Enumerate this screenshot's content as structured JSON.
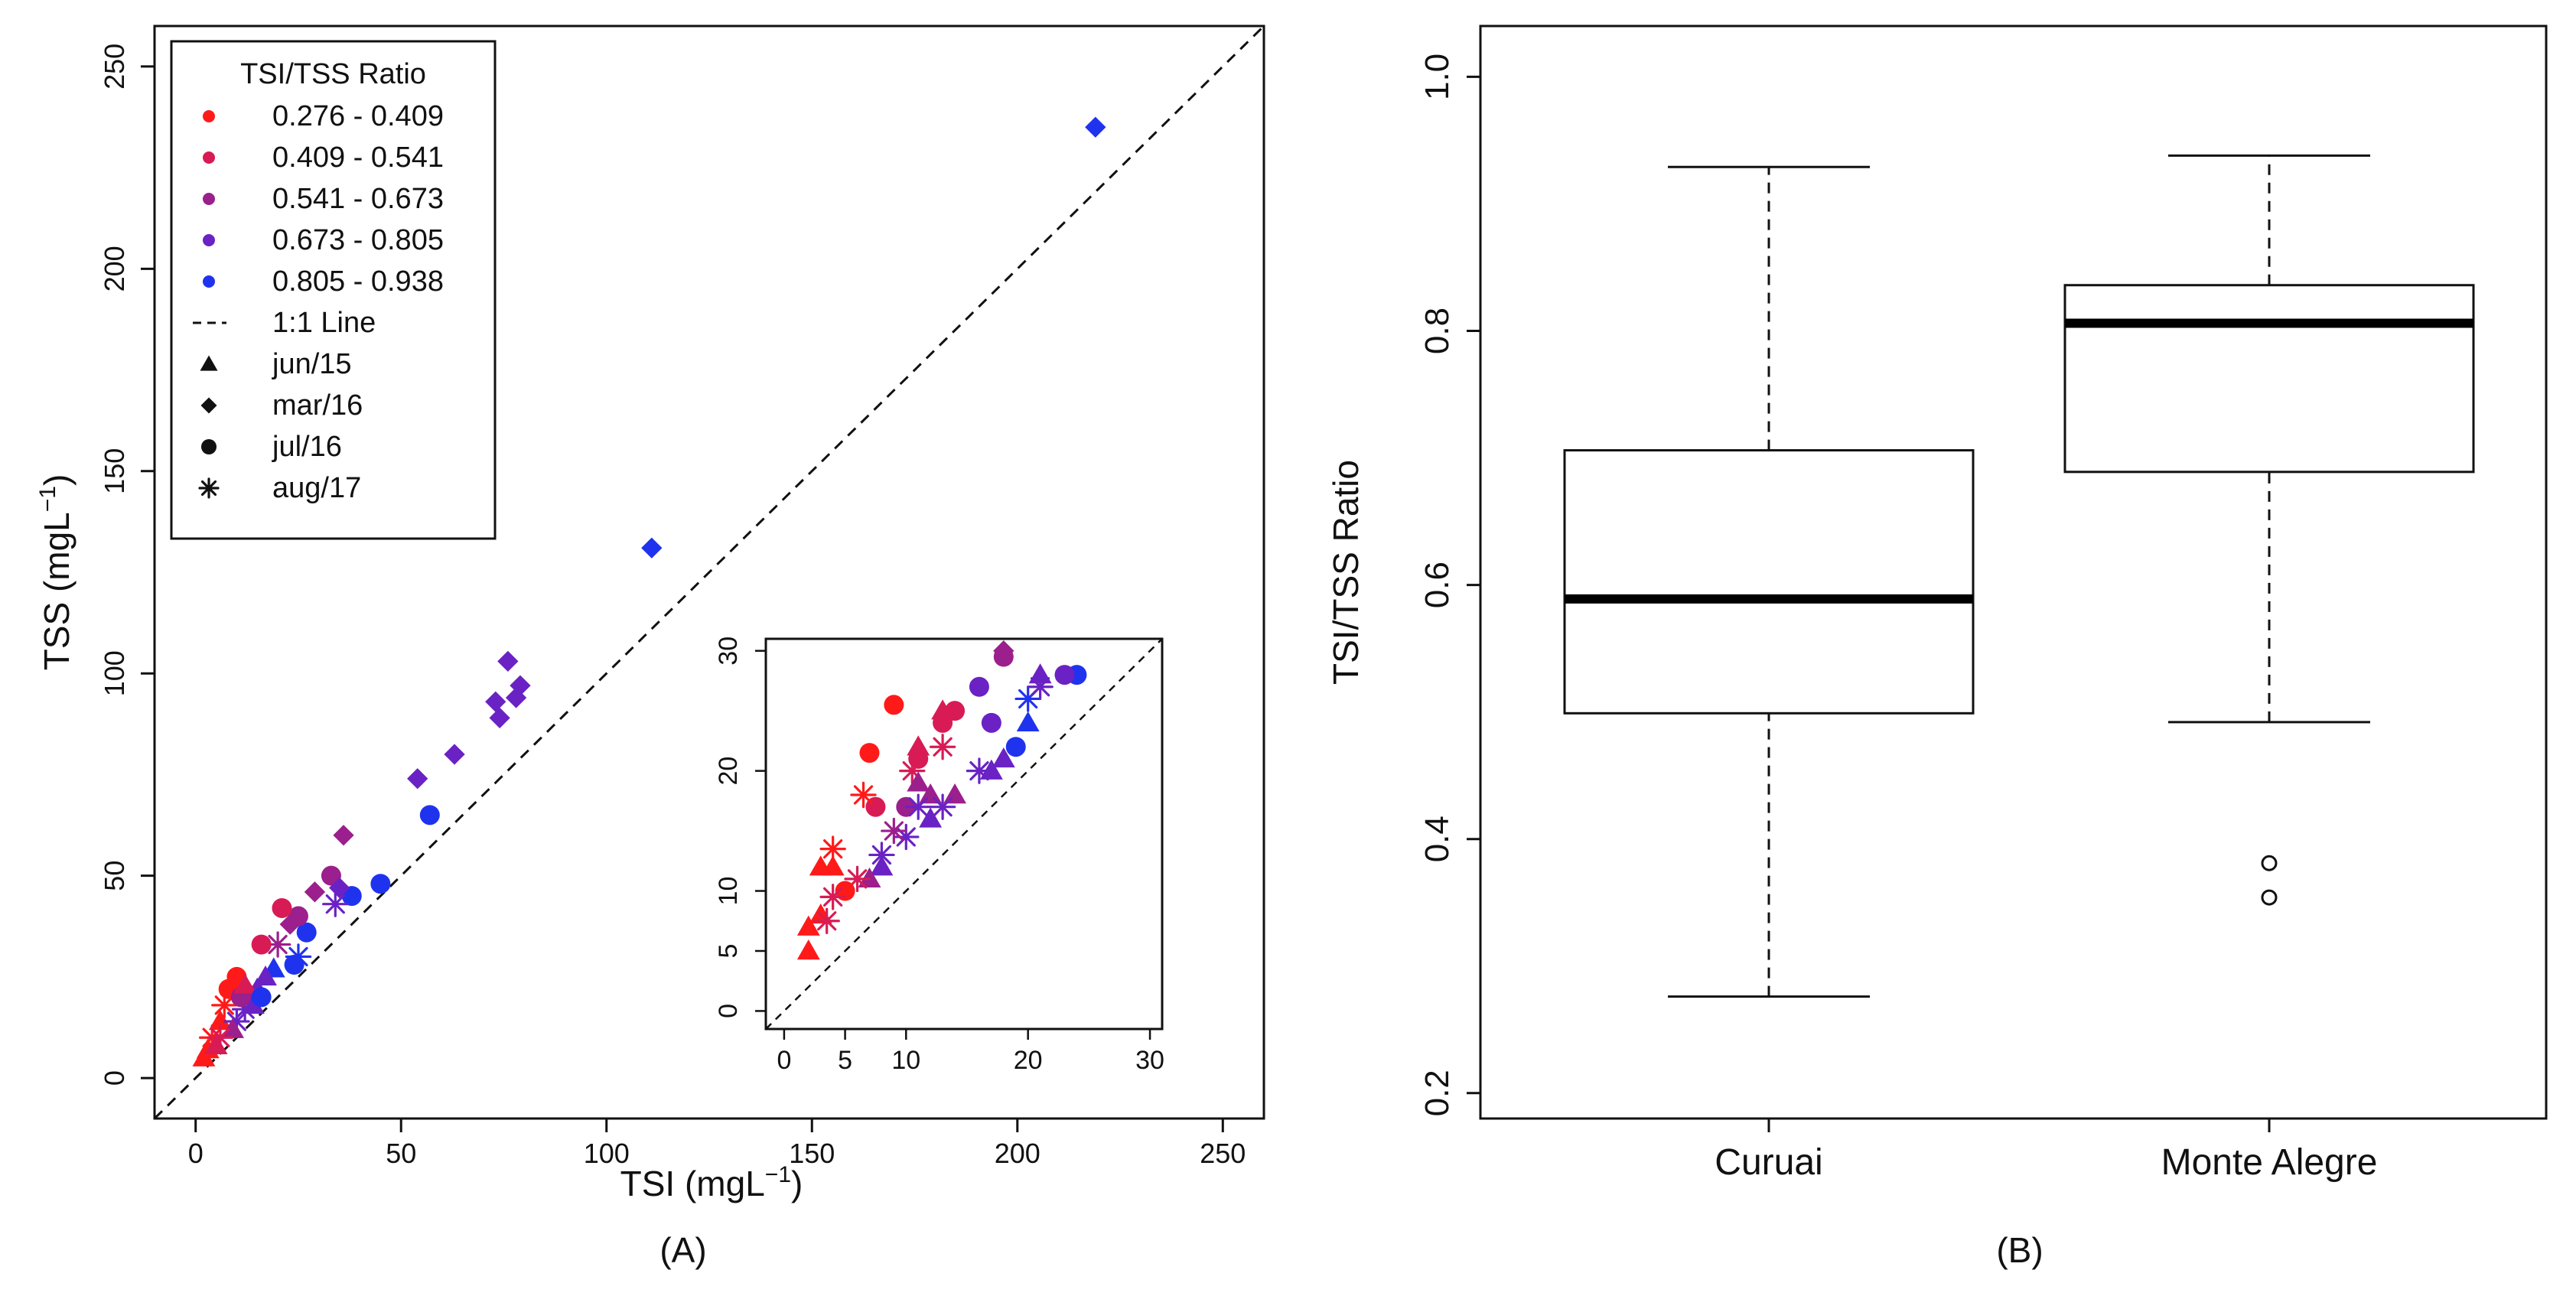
{
  "chart_data": [
    {
      "type": "scatter",
      "panel_label": "(A)",
      "xlabel": "TSI (mgL",
      "ylabel": "TSS (mgL",
      "unit_superscript": "−1",
      "unit_close": ")",
      "xlim": [
        -10,
        260
      ],
      "ylim": [
        -10,
        260
      ],
      "xticks": [
        0,
        50,
        100,
        150,
        200,
        250
      ],
      "yticks": [
        0,
        50,
        100,
        150,
        200,
        250
      ],
      "reference_line": {
        "name": "1:1 Line",
        "slope": 1
      },
      "legend": {
        "title": "TSI/TSS Ratio",
        "position": "top-left",
        "ratio_classes": [
          {
            "label": "0.276 - 0.409",
            "color": "#ff1a1a"
          },
          {
            "label": "0.409 - 0.541",
            "color": "#d81b55"
          },
          {
            "label": "0.541 - 0.673",
            "color": "#9b1f8c"
          },
          {
            "label": "0.673 - 0.805",
            "color": "#6a22c4"
          },
          {
            "label": "0.805 - 0.938",
            "color": "#1f33ee"
          }
        ],
        "line_label": "1:1 Line",
        "campaigns": [
          {
            "label": "jun/15",
            "marker": "triangle"
          },
          {
            "label": "mar/16",
            "marker": "diamond"
          },
          {
            "label": "jul/16",
            "marker": "circle"
          },
          {
            "label": "aug/17",
            "marker": "asterisk"
          }
        ]
      },
      "points": [
        {
          "x": 219,
          "y": 235,
          "class": 4,
          "marker": "diamond"
        },
        {
          "x": 111,
          "y": 131,
          "class": 4,
          "marker": "diamond"
        },
        {
          "x": 76,
          "y": 103,
          "class": 3,
          "marker": "diamond"
        },
        {
          "x": 79,
          "y": 97,
          "class": 3,
          "marker": "diamond"
        },
        {
          "x": 78,
          "y": 94,
          "class": 3,
          "marker": "diamond"
        },
        {
          "x": 73,
          "y": 93,
          "class": 3,
          "marker": "diamond"
        },
        {
          "x": 74,
          "y": 89,
          "class": 3,
          "marker": "diamond"
        },
        {
          "x": 63,
          "y": 80,
          "class": 3,
          "marker": "diamond"
        },
        {
          "x": 54,
          "y": 74,
          "class": 3,
          "marker": "diamond"
        },
        {
          "x": 57,
          "y": 65,
          "class": 4,
          "marker": "circle"
        },
        {
          "x": 36,
          "y": 60,
          "class": 2,
          "marker": "diamond"
        },
        {
          "x": 45,
          "y": 48,
          "class": 4,
          "marker": "circle"
        },
        {
          "x": 38,
          "y": 45,
          "class": 4,
          "marker": "circle"
        },
        {
          "x": 33,
          "y": 50,
          "class": 2,
          "marker": "circle"
        },
        {
          "x": 35,
          "y": 47,
          "class": 3,
          "marker": "diamond"
        },
        {
          "x": 34,
          "y": 43,
          "class": 3,
          "marker": "asterisk"
        },
        {
          "x": 29,
          "y": 46,
          "class": 2,
          "marker": "diamond"
        },
        {
          "x": 27,
          "y": 36,
          "class": 4,
          "marker": "circle"
        },
        {
          "x": 25,
          "y": 40,
          "class": 2,
          "marker": "circle"
        },
        {
          "x": 23,
          "y": 38,
          "class": 2,
          "marker": "diamond"
        },
        {
          "x": 21,
          "y": 42,
          "class": 1,
          "marker": "circle"
        },
        {
          "x": 20,
          "y": 33,
          "class": 2,
          "marker": "asterisk"
        },
        {
          "x": 16,
          "y": 33,
          "class": 1,
          "marker": "circle"
        },
        {
          "x": 25,
          "y": 30,
          "class": 4,
          "marker": "asterisk"
        },
        {
          "x": 24,
          "y": 28,
          "class": 4,
          "marker": "circle"
        },
        {
          "x": 19,
          "y": 27,
          "class": 4,
          "marker": "triangle"
        },
        {
          "x": 17,
          "y": 25,
          "class": 3,
          "marker": "triangle"
        },
        {
          "x": 15,
          "y": 22,
          "class": 3,
          "marker": "triangle"
        },
        {
          "x": 13,
          "y": 21,
          "class": 2,
          "marker": "diamond"
        },
        {
          "x": 10,
          "y": 25,
          "class": 0,
          "marker": "circle"
        },
        {
          "x": 8,
          "y": 22,
          "class": 0,
          "marker": "circle"
        },
        {
          "x": 7,
          "y": 18,
          "class": 0,
          "marker": "asterisk"
        },
        {
          "x": 6,
          "y": 14,
          "class": 0,
          "marker": "triangle"
        },
        {
          "x": 4,
          "y": 10,
          "class": 0,
          "marker": "asterisk"
        },
        {
          "x": 3,
          "y": 7,
          "class": 0,
          "marker": "triangle"
        },
        {
          "x": 2,
          "y": 5,
          "class": 0,
          "marker": "triangle"
        },
        {
          "x": 12,
          "y": 17,
          "class": 3,
          "marker": "asterisk"
        },
        {
          "x": 10,
          "y": 14,
          "class": 3,
          "marker": "asterisk"
        },
        {
          "x": 9,
          "y": 12,
          "class": 2,
          "marker": "triangle"
        },
        {
          "x": 14,
          "y": 18,
          "class": 3,
          "marker": "triangle"
        },
        {
          "x": 11,
          "y": 20,
          "class": 2,
          "marker": "circle"
        },
        {
          "x": 6,
          "y": 10,
          "class": 1,
          "marker": "asterisk"
        },
        {
          "x": 5,
          "y": 8,
          "class": 1,
          "marker": "triangle"
        },
        {
          "x": 12,
          "y": 23,
          "class": 1,
          "marker": "triangle"
        },
        {
          "x": 16,
          "y": 20,
          "class": 4,
          "marker": "circle"
        }
      ],
      "inset": {
        "xlim": [
          -1.5,
          31
        ],
        "ylim": [
          -1.5,
          31
        ],
        "xticks": [
          0,
          5,
          10,
          20,
          30
        ],
        "yticks": [
          0,
          5,
          10,
          20,
          30
        ],
        "points": [
          {
            "x": 24,
            "y": 28,
            "class": 4,
            "marker": "circle"
          },
          {
            "x": 21,
            "y": 28,
            "class": 3,
            "marker": "triangle"
          },
          {
            "x": 23,
            "y": 28,
            "class": 3,
            "marker": "circle"
          },
          {
            "x": 18,
            "y": 29.5,
            "class": 2,
            "marker": "circle"
          },
          {
            "x": 18,
            "y": 30,
            "class": 2,
            "marker": "diamond"
          },
          {
            "x": 16,
            "y": 27,
            "class": 3,
            "marker": "circle"
          },
          {
            "x": 20,
            "y": 26,
            "class": 4,
            "marker": "asterisk"
          },
          {
            "x": 21,
            "y": 27,
            "class": 3,
            "marker": "asterisk"
          },
          {
            "x": 20,
            "y": 24,
            "class": 4,
            "marker": "triangle"
          },
          {
            "x": 19,
            "y": 22,
            "class": 4,
            "marker": "circle"
          },
          {
            "x": 17,
            "y": 24,
            "class": 3,
            "marker": "circle"
          },
          {
            "x": 13,
            "y": 25,
            "class": 1,
            "marker": "triangle"
          },
          {
            "x": 14,
            "y": 25,
            "class": 1,
            "marker": "circle"
          },
          {
            "x": 13,
            "y": 24,
            "class": 1,
            "marker": "circle"
          },
          {
            "x": 13,
            "y": 22,
            "class": 1,
            "marker": "asterisk"
          },
          {
            "x": 11,
            "y": 22,
            "class": 1,
            "marker": "triangle"
          },
          {
            "x": 11,
            "y": 21,
            "class": 1,
            "marker": "circle"
          },
          {
            "x": 10.5,
            "y": 20,
            "class": 1,
            "marker": "asterisk"
          },
          {
            "x": 11,
            "y": 19,
            "class": 2,
            "marker": "triangle"
          },
          {
            "x": 12,
            "y": 18,
            "class": 2,
            "marker": "triangle"
          },
          {
            "x": 14,
            "y": 18,
            "class": 2,
            "marker": "triangle"
          },
          {
            "x": 16,
            "y": 20,
            "class": 3,
            "marker": "asterisk"
          },
          {
            "x": 17,
            "y": 20,
            "class": 3,
            "marker": "triangle"
          },
          {
            "x": 18,
            "y": 21,
            "class": 3,
            "marker": "triangle"
          },
          {
            "x": 10,
            "y": 17,
            "class": 2,
            "marker": "circle"
          },
          {
            "x": 7.5,
            "y": 17,
            "class": 1,
            "marker": "circle"
          },
          {
            "x": 7,
            "y": 21.5,
            "class": 0,
            "marker": "circle"
          },
          {
            "x": 9,
            "y": 25.5,
            "class": 0,
            "marker": "circle"
          },
          {
            "x": 6.5,
            "y": 18,
            "class": 0,
            "marker": "asterisk"
          },
          {
            "x": 12,
            "y": 16,
            "class": 3,
            "marker": "triangle"
          },
          {
            "x": 13,
            "y": 17,
            "class": 3,
            "marker": "asterisk"
          },
          {
            "x": 11,
            "y": 17,
            "class": 3,
            "marker": "asterisk"
          },
          {
            "x": 10,
            "y": 14.5,
            "class": 3,
            "marker": "asterisk"
          },
          {
            "x": 9,
            "y": 15,
            "class": 2,
            "marker": "asterisk"
          },
          {
            "x": 8,
            "y": 12,
            "class": 3,
            "marker": "triangle"
          },
          {
            "x": 8,
            "y": 13,
            "class": 3,
            "marker": "asterisk"
          },
          {
            "x": 7,
            "y": 11,
            "class": 2,
            "marker": "triangle"
          },
          {
            "x": 6,
            "y": 11,
            "class": 1,
            "marker": "asterisk"
          },
          {
            "x": 4,
            "y": 13.5,
            "class": 0,
            "marker": "asterisk"
          },
          {
            "x": 4,
            "y": 12,
            "class": 0,
            "marker": "triangle"
          },
          {
            "x": 3,
            "y": 12,
            "class": 0,
            "marker": "triangle"
          },
          {
            "x": 5,
            "y": 10,
            "class": 0,
            "marker": "circle"
          },
          {
            "x": 4,
            "y": 9.5,
            "class": 1,
            "marker": "asterisk"
          },
          {
            "x": 3,
            "y": 8,
            "class": 0,
            "marker": "triangle"
          },
          {
            "x": 3.5,
            "y": 7.5,
            "class": 1,
            "marker": "asterisk"
          },
          {
            "x": 2,
            "y": 7,
            "class": 0,
            "marker": "triangle"
          },
          {
            "x": 2,
            "y": 5,
            "class": 0,
            "marker": "triangle"
          }
        ]
      }
    },
    {
      "type": "boxplot",
      "panel_label": "(B)",
      "ylabel": "TSI/TSS Ratio",
      "ylim": [
        0.18,
        1.04
      ],
      "yticks": [
        "0.2",
        "0.4",
        "0.6",
        "0.8",
        "1.0"
      ],
      "categories": [
        "Curuai",
        "Monte Alegre"
      ],
      "boxes": [
        {
          "name": "Curuai",
          "whisker_low": 0.276,
          "q1": 0.499,
          "median": 0.589,
          "q3": 0.706,
          "whisker_high": 0.929,
          "outliers": []
        },
        {
          "name": "Monte Alegre",
          "whisker_low": 0.492,
          "q1": 0.689,
          "median": 0.806,
          "q3": 0.836,
          "whisker_high": 0.938,
          "outliers": [
            0.381,
            0.354
          ]
        }
      ]
    }
  ]
}
